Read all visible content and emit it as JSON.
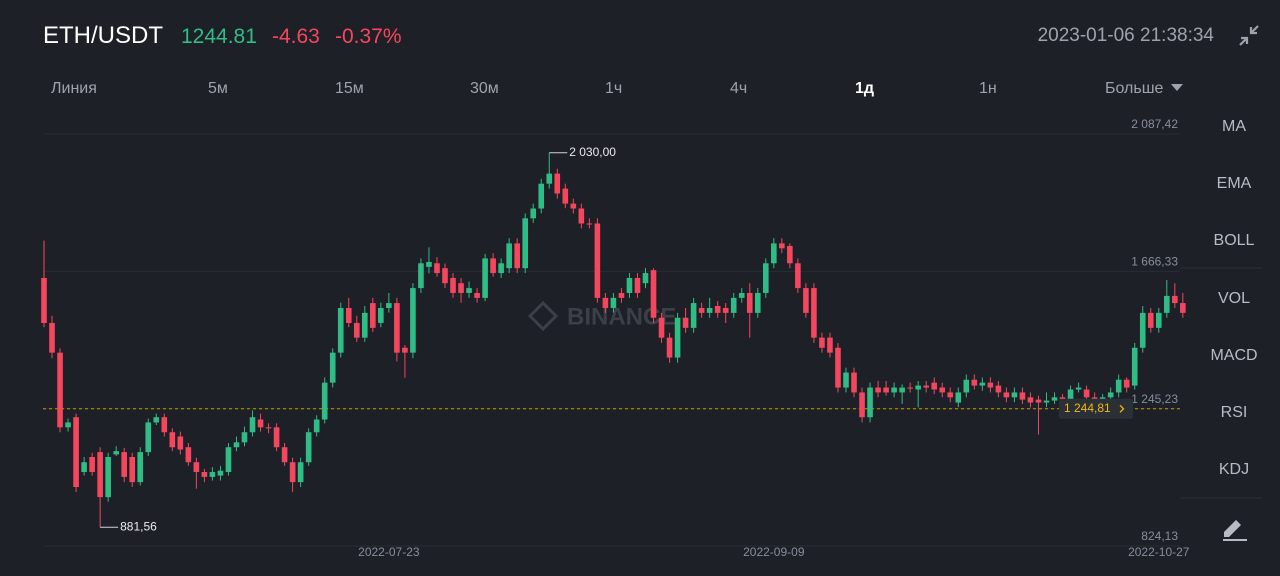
{
  "header": {
    "pair": "ETH/USDT",
    "price": "1244.81",
    "change": "-4.63",
    "change_percent": "-0.37%",
    "datetime": "2023-01-06 21:38:34"
  },
  "tabs": [
    "Линия",
    "5м",
    "15м",
    "30м",
    "1ч",
    "4ч",
    "1д",
    "1н",
    "Больше"
  ],
  "indicators": [
    "MA",
    "EMA",
    "BOLL",
    "VOL",
    "MACD",
    "RSI",
    "KDJ"
  ],
  "chart_data": {
    "type": "candlestick",
    "watermark": "BINANCE",
    "up_color": "#2ebd85",
    "down_color": "#f6465d",
    "grid": true,
    "ylim": [
      824.13,
      2145.7
    ],
    "yticks": [
      {
        "value": 2087.42,
        "label": "2 087,42"
      },
      {
        "value": 1666.33,
        "label": "1 666,33"
      },
      {
        "value": 1245.23,
        "label": "1 245,23"
      },
      {
        "value": 824.13,
        "label": "824,13"
      }
    ],
    "max_label": {
      "value": 2030,
      "label": "2 030,00"
    },
    "min_label": {
      "value": 881.56,
      "label": "881,56"
    },
    "last_price": {
      "value": 1244.81,
      "label": "1 244,81"
    },
    "categories": [
      null,
      null,
      null,
      null,
      null,
      null,
      null,
      null,
      null,
      null,
      null,
      null,
      null,
      null,
      null,
      null,
      null,
      null,
      null,
      null,
      null,
      null,
      null,
      null,
      null,
      null,
      null,
      null,
      null,
      null,
      null,
      null,
      null,
      null,
      null,
      null,
      null,
      null,
      null,
      null,
      null,
      null,
      null,
      "2022-07-23",
      null,
      null,
      null,
      null,
      null,
      null,
      null,
      null,
      null,
      null,
      null,
      null,
      null,
      null,
      null,
      null,
      null,
      null,
      null,
      null,
      null,
      null,
      null,
      null,
      null,
      null,
      null,
      null,
      null,
      null,
      null,
      null,
      null,
      null,
      null,
      null,
      null,
      null,
      null,
      null,
      null,
      null,
      null,
      null,
      null,
      null,
      null,
      "2022-09-09",
      null,
      null,
      null,
      null,
      null,
      null,
      null,
      null,
      null,
      null,
      null,
      null,
      null,
      null,
      null,
      null,
      null,
      null,
      null,
      null,
      null,
      null,
      null,
      null,
      null,
      null,
      null,
      null,
      null,
      null,
      null,
      null,
      null,
      null,
      null,
      null,
      null,
      null,
      null,
      null,
      null,
      null,
      null,
      null,
      null,
      null,
      null,
      "2022-10-27",
      null,
      null,
      null
    ],
    "ohlc": [
      [
        1646,
        1761,
        1495,
        1508
      ],
      [
        1508,
        1530,
        1400,
        1417
      ],
      [
        1417,
        1430,
        1173,
        1188
      ],
      [
        1188,
        1215,
        1175,
        1203
      ],
      [
        1219,
        1230,
        990,
        1005
      ],
      [
        1051,
        1097,
        1040,
        1081
      ],
      [
        1097,
        1110,
        1040,
        1051
      ],
      [
        1112,
        1127,
        881.56,
        974
      ],
      [
        974,
        1110,
        960,
        1097
      ],
      [
        1105,
        1130,
        1100,
        1115
      ],
      [
        1112,
        1125,
        1020,
        1036
      ],
      [
        1097,
        1110,
        1005,
        1020
      ],
      [
        1020,
        1127,
        1010,
        1112
      ],
      [
        1112,
        1215,
        1100,
        1203
      ],
      [
        1203,
        1230,
        1195,
        1219
      ],
      [
        1219,
        1230,
        1160,
        1173
      ],
      [
        1173,
        1185,
        1115,
        1127
      ],
      [
        1160,
        1175,
        1105,
        1120
      ],
      [
        1127,
        1140,
        1070,
        1081
      ],
      [
        1081,
        1095,
        1000,
        1051
      ],
      [
        1051,
        1060,
        1020,
        1036
      ],
      [
        1036,
        1066,
        1025,
        1051
      ],
      [
        1040,
        1070,
        1025,
        1055
      ],
      [
        1051,
        1140,
        1040,
        1127
      ],
      [
        1127,
        1160,
        1115,
        1142
      ],
      [
        1142,
        1190,
        1130,
        1173
      ],
      [
        1173,
        1240,
        1160,
        1219
      ],
      [
        1212,
        1230,
        1175,
        1188
      ],
      [
        1188,
        1200,
        1170,
        1185
      ],
      [
        1188,
        1200,
        1115,
        1127
      ],
      [
        1127,
        1140,
        1070,
        1081
      ],
      [
        1081,
        1095,
        990,
        1020
      ],
      [
        1020,
        1095,
        1005,
        1081
      ],
      [
        1081,
        1185,
        1070,
        1173
      ],
      [
        1173,
        1225,
        1160,
        1212
      ],
      [
        1212,
        1341,
        1200,
        1325
      ],
      [
        1325,
        1430,
        1310,
        1417
      ],
      [
        1417,
        1570,
        1402,
        1554
      ],
      [
        1554,
        1585,
        1495,
        1508
      ],
      [
        1508,
        1530,
        1450,
        1463
      ],
      [
        1463,
        1560,
        1450,
        1539
      ],
      [
        1569,
        1585,
        1480,
        1493
      ],
      [
        1508,
        1570,
        1495,
        1554
      ],
      [
        1554,
        1600,
        1540,
        1569
      ],
      [
        1569,
        1585,
        1390,
        1417
      ],
      [
        1432,
        1440,
        1340,
        1417
      ],
      [
        1417,
        1630,
        1400,
        1615
      ],
      [
        1615,
        1706,
        1600,
        1691
      ],
      [
        1680,
        1740,
        1660,
        1695
      ],
      [
        1691,
        1710,
        1650,
        1661
      ],
      [
        1676,
        1690,
        1615,
        1630
      ],
      [
        1646,
        1661,
        1585,
        1600
      ],
      [
        1630,
        1646,
        1570,
        1600
      ],
      [
        1600,
        1635,
        1585,
        1615
      ],
      [
        1600,
        1615,
        1570,
        1585
      ],
      [
        1585,
        1720,
        1575,
        1706
      ],
      [
        1706,
        1722,
        1650,
        1661
      ],
      [
        1661,
        1706,
        1646,
        1691
      ],
      [
        1676,
        1768,
        1661,
        1752
      ],
      [
        1752,
        1768,
        1661,
        1676
      ],
      [
        1676,
        1844,
        1661,
        1829
      ],
      [
        1829,
        1874,
        1815,
        1859
      ],
      [
        1859,
        1950,
        1844,
        1935
      ],
      [
        1935,
        2030,
        1920,
        1966
      ],
      [
        1966,
        1981,
        1889,
        1905
      ],
      [
        1920,
        1935,
        1860,
        1874
      ],
      [
        1874,
        1889,
        1844,
        1859
      ],
      [
        1859,
        1874,
        1798,
        1813
      ],
      [
        1813,
        1829,
        1798,
        1810
      ],
      [
        1813,
        1829,
        1570,
        1585
      ],
      [
        1585,
        1600,
        1539,
        1554
      ],
      [
        1554,
        1600,
        1540,
        1585
      ],
      [
        1600,
        1615,
        1570,
        1585
      ],
      [
        1600,
        1661,
        1585,
        1646
      ],
      [
        1646,
        1661,
        1585,
        1600
      ],
      [
        1630,
        1676,
        1615,
        1661
      ],
      [
        1670,
        1676,
        1508,
        1524
      ],
      [
        1524,
        1539,
        1447,
        1463
      ],
      [
        1463,
        1478,
        1386,
        1402
      ],
      [
        1402,
        1539,
        1386,
        1524
      ],
      [
        1524,
        1554,
        1478,
        1493
      ],
      [
        1493,
        1585,
        1478,
        1569
      ],
      [
        1554,
        1570,
        1524,
        1539
      ],
      [
        1539,
        1585,
        1524,
        1554
      ],
      [
        1560,
        1575,
        1524,
        1539
      ],
      [
        1554,
        1569,
        1508,
        1539
      ],
      [
        1539,
        1600,
        1524,
        1585
      ],
      [
        1585,
        1615,
        1570,
        1600
      ],
      [
        1600,
        1630,
        1463,
        1539
      ],
      [
        1539,
        1615,
        1524,
        1600
      ],
      [
        1600,
        1706,
        1585,
        1691
      ],
      [
        1691,
        1768,
        1676,
        1752
      ],
      [
        1752,
        1768,
        1722,
        1737
      ],
      [
        1744,
        1752,
        1676,
        1691
      ],
      [
        1691,
        1706,
        1600,
        1615
      ],
      [
        1615,
        1630,
        1524,
        1539
      ],
      [
        1615,
        1630,
        1447,
        1463
      ],
      [
        1463,
        1478,
        1417,
        1432
      ],
      [
        1463,
        1478,
        1402,
        1417
      ],
      [
        1432,
        1447,
        1295,
        1310
      ],
      [
        1310,
        1371,
        1295,
        1356
      ],
      [
        1356,
        1371,
        1280,
        1295
      ],
      [
        1295,
        1310,
        1203,
        1219
      ],
      [
        1219,
        1325,
        1203,
        1310
      ],
      [
        1310,
        1330,
        1280,
        1295
      ],
      [
        1310,
        1330,
        1285,
        1295
      ],
      [
        1295,
        1325,
        1280,
        1310
      ],
      [
        1295,
        1320,
        1260,
        1310
      ],
      [
        1310,
        1325,
        1295,
        1308
      ],
      [
        1304,
        1330,
        1249,
        1316
      ],
      [
        1316,
        1330,
        1295,
        1310
      ],
      [
        1325,
        1341,
        1290,
        1304
      ],
      [
        1310,
        1325,
        1280,
        1295
      ],
      [
        1295,
        1310,
        1265,
        1280
      ],
      [
        1264,
        1310,
        1250,
        1295
      ],
      [
        1295,
        1350,
        1280,
        1334
      ],
      [
        1334,
        1350,
        1304,
        1316
      ],
      [
        1316,
        1341,
        1300,
        1325
      ],
      [
        1325,
        1341,
        1295,
        1310
      ],
      [
        1316,
        1330,
        1280,
        1295
      ],
      [
        1295,
        1310,
        1265,
        1280
      ],
      [
        1280,
        1310,
        1265,
        1295
      ],
      [
        1295,
        1310,
        1260,
        1273
      ],
      [
        1280,
        1295,
        1249,
        1264
      ],
      [
        1273,
        1285,
        1166,
        1264
      ],
      [
        1264,
        1295,
        1250,
        1270
      ],
      [
        1270,
        1295,
        1260,
        1280
      ],
      [
        1280,
        1290,
        1249,
        1264
      ],
      [
        1264,
        1316,
        1249,
        1304
      ],
      [
        1304,
        1325,
        1295,
        1310
      ],
      [
        1304,
        1316,
        1265,
        1280
      ],
      [
        1280,
        1295,
        1255,
        1270
      ],
      [
        1264,
        1290,
        1249,
        1280
      ],
      [
        1280,
        1310,
        1265,
        1295
      ],
      [
        1295,
        1350,
        1280,
        1334
      ],
      [
        1334,
        1341,
        1295,
        1310
      ],
      [
        1316,
        1447,
        1304,
        1432
      ],
      [
        1432,
        1560,
        1417,
        1539
      ],
      [
        1539,
        1554,
        1478,
        1493
      ],
      [
        1493,
        1554,
        1478,
        1539
      ],
      [
        1539,
        1640,
        1524,
        1591
      ],
      [
        1591,
        1630,
        1554,
        1569
      ],
      [
        1569,
        1600,
        1524,
        1539
      ]
    ]
  }
}
